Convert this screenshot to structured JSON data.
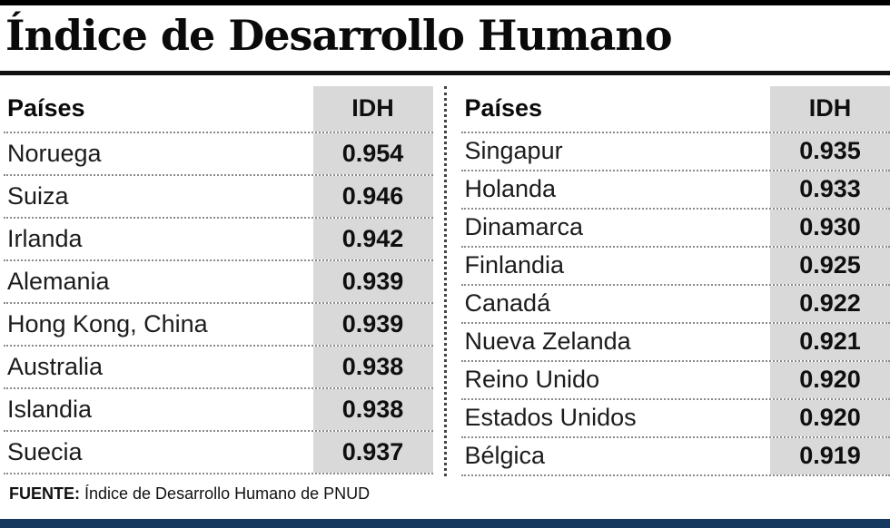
{
  "title": "Índice de Desarrollo Humano",
  "tables": [
    {
      "header": {
        "country": "Países",
        "value": "IDH"
      },
      "rows": [
        {
          "country": "Noruega",
          "value": "0.954"
        },
        {
          "country": "Suiza",
          "value": "0.946"
        },
        {
          "country": "Irlanda",
          "value": "0.942"
        },
        {
          "country": "Alemania",
          "value": "0.939"
        },
        {
          "country": "Hong Kong, China",
          "value": "0.939"
        },
        {
          "country": "Australia",
          "value": "0.938"
        },
        {
          "country": "Islandia",
          "value": "0.938"
        },
        {
          "country": "Suecia",
          "value": "0.937"
        }
      ]
    },
    {
      "header": {
        "country": "Países",
        "value": "IDH"
      },
      "rows": [
        {
          "country": "Singapur",
          "value": "0.935"
        },
        {
          "country": "Holanda",
          "value": "0.933"
        },
        {
          "country": "Dinamarca",
          "value": "0.930"
        },
        {
          "country": "Finlandia",
          "value": "0.925"
        },
        {
          "country": "Canadá",
          "value": "0.922"
        },
        {
          "country": "Nueva Zelanda",
          "value": "0.921"
        },
        {
          "country": "Reino Unido",
          "value": "0.920"
        },
        {
          "country": "Estados Unidos",
          "value": "0.920"
        },
        {
          "country": "Bélgica",
          "value": "0.919"
        }
      ]
    }
  ],
  "footer": {
    "source_label": "FUENTE:",
    "source_text": "Índice de Desarrollo Humano de PNUD"
  },
  "colors": {
    "idh_column_bg": "#d9d9d9",
    "top_bar": "#000000",
    "bottom_bar": "#16395f",
    "title_color": "#0a0a0a"
  },
  "chart_data": {
    "type": "table",
    "title": "Índice de Desarrollo Humano",
    "columns": [
      "Países",
      "IDH"
    ],
    "rows": [
      [
        "Noruega",
        "0.954"
      ],
      [
        "Suiza",
        "0.946"
      ],
      [
        "Irlanda",
        "0.942"
      ],
      [
        "Alemania",
        "0.939"
      ],
      [
        "Hong Kong, China",
        "0.939"
      ],
      [
        "Australia",
        "0.938"
      ],
      [
        "Islandia",
        "0.938"
      ],
      [
        "Suecia",
        "0.937"
      ],
      [
        "Singapur",
        "0.935"
      ],
      [
        "Holanda",
        "0.933"
      ],
      [
        "Dinamarca",
        "0.930"
      ],
      [
        "Finlandia",
        "0.925"
      ],
      [
        "Canadá",
        "0.922"
      ],
      [
        "Nueva Zelanda",
        "0.921"
      ],
      [
        "Reino Unido",
        "0.920"
      ],
      [
        "Estados Unidos",
        "0.920"
      ],
      [
        "Bélgica",
        "0.919"
      ]
    ],
    "source": "FUENTE: Índice de Desarrollo Humano de PNUD",
    "layout": "two side-by-side tables split after Suecia, IDH column shaded gray, dotted row separators, dotted vertical divider"
  }
}
